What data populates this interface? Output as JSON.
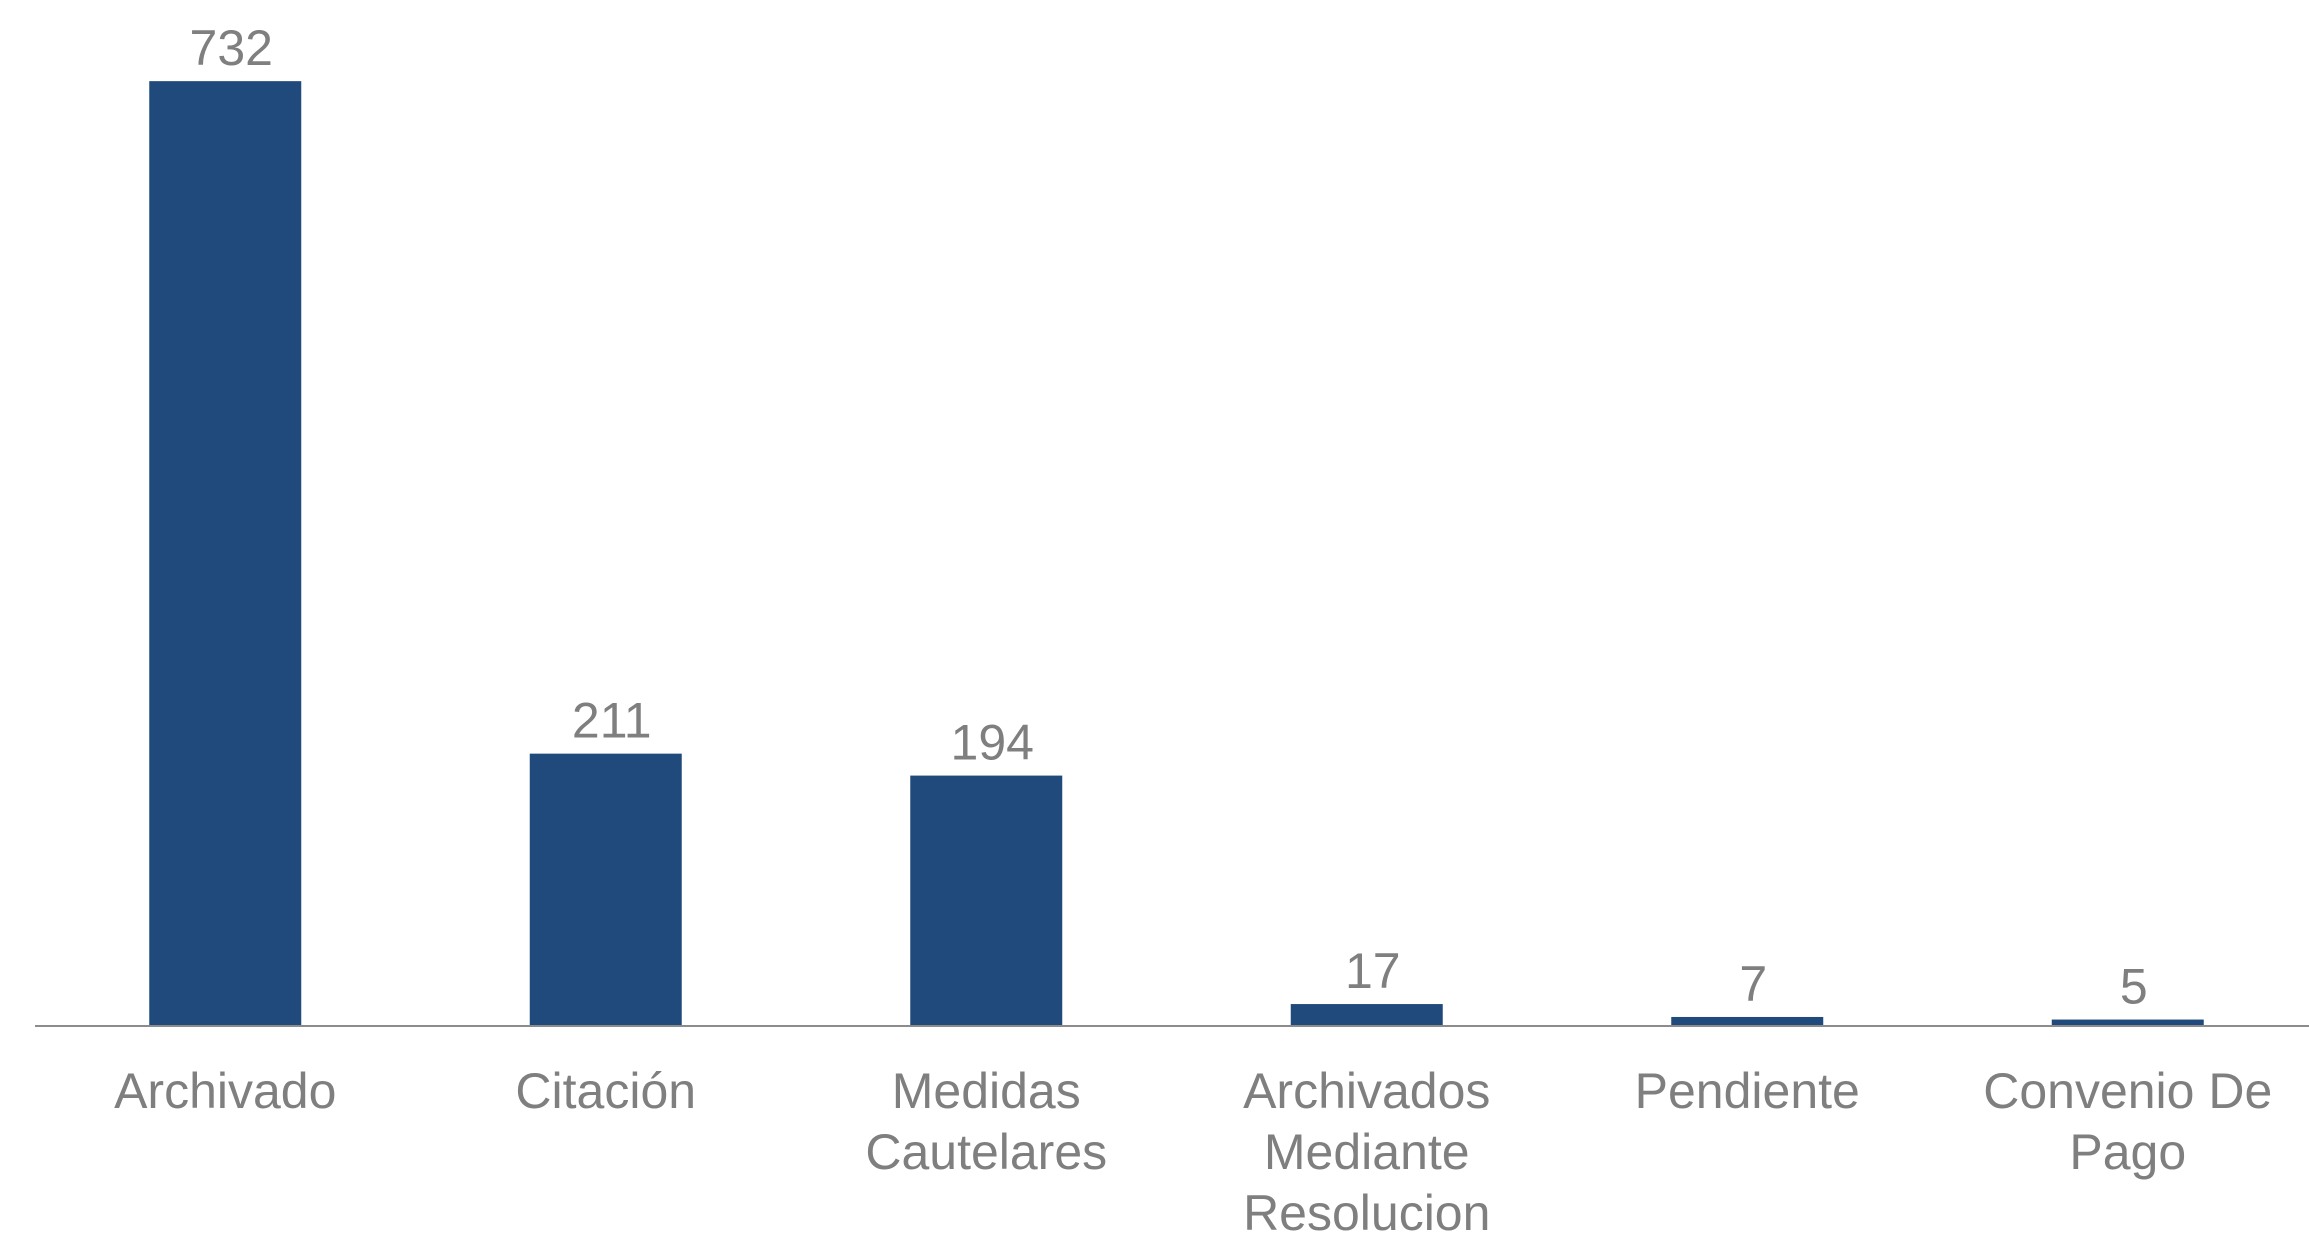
{
  "chart_data": {
    "type": "bar",
    "categories": [
      "Archivado",
      "Citación",
      "Medidas Cautelares",
      "Archivados Mediante Resolucion",
      "Pendiente",
      "Convenio De Pago"
    ],
    "values": [
      732,
      211,
      194,
      17,
      7,
      5
    ],
    "color": "#204a7c",
    "ylim": [
      0,
      760
    ]
  }
}
